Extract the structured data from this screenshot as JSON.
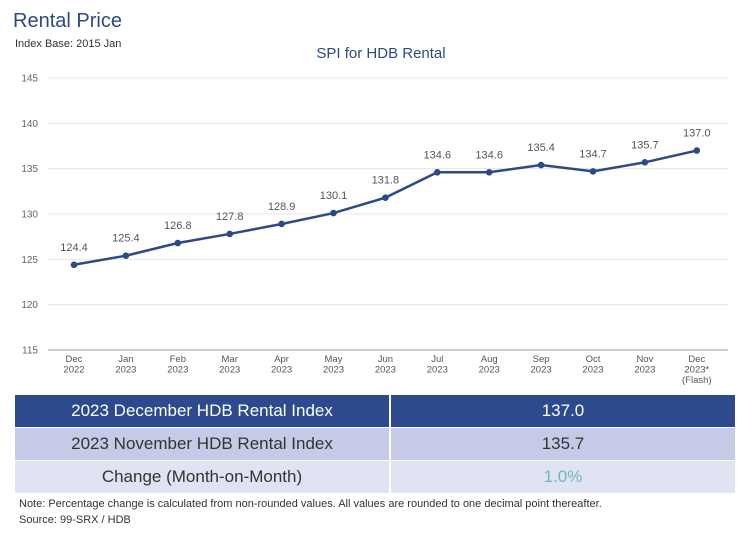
{
  "header": {
    "title": "Rental Price",
    "subtitle": "Index Base: 2015 Jan"
  },
  "chart_data": {
    "type": "line",
    "title": "SPI for HDB Rental",
    "categories": [
      [
        "Dec",
        "2022"
      ],
      [
        "Jan",
        "2023"
      ],
      [
        "Feb",
        "2023"
      ],
      [
        "Mar",
        "2023"
      ],
      [
        "Apr",
        "2023"
      ],
      [
        "May",
        "2023"
      ],
      [
        "Jun",
        "2023"
      ],
      [
        "Jul",
        "2023"
      ],
      [
        "Aug",
        "2023"
      ],
      [
        "Sep",
        "2023"
      ],
      [
        "Oct",
        "2023"
      ],
      [
        "Nov",
        "2023"
      ],
      [
        "Dec",
        "2023*",
        "(Flash)"
      ]
    ],
    "values": [
      124.4,
      125.4,
      126.8,
      127.8,
      128.9,
      130.1,
      131.8,
      134.6,
      134.6,
      135.4,
      134.7,
      135.7,
      137.0
    ],
    "data_labels": [
      "124.4",
      "125.4",
      "126.8",
      "127.8",
      "128.9",
      "130.1",
      "131.8",
      "134.6",
      "134.6",
      "135.4",
      "134.7",
      "135.7",
      "137.0"
    ],
    "ylim": [
      115,
      145
    ],
    "yticks": [
      115,
      120,
      125,
      130,
      135,
      140,
      145
    ],
    "grid": true,
    "line_color": "#2b4a86"
  },
  "summary": {
    "rows": [
      {
        "label": "2023 December HDB Rental Index",
        "value": "137.0"
      },
      {
        "label": "2023 November HDB Rental Index",
        "value": "135.7"
      },
      {
        "label": "Change (Month-on-Month)",
        "value": "1.0%"
      }
    ]
  },
  "footer": {
    "note": "Note: Percentage change is calculated from non-rounded values.  All values are rounded to one decimal point thereafter.",
    "source": "Source: 99-SRX / HDB"
  }
}
